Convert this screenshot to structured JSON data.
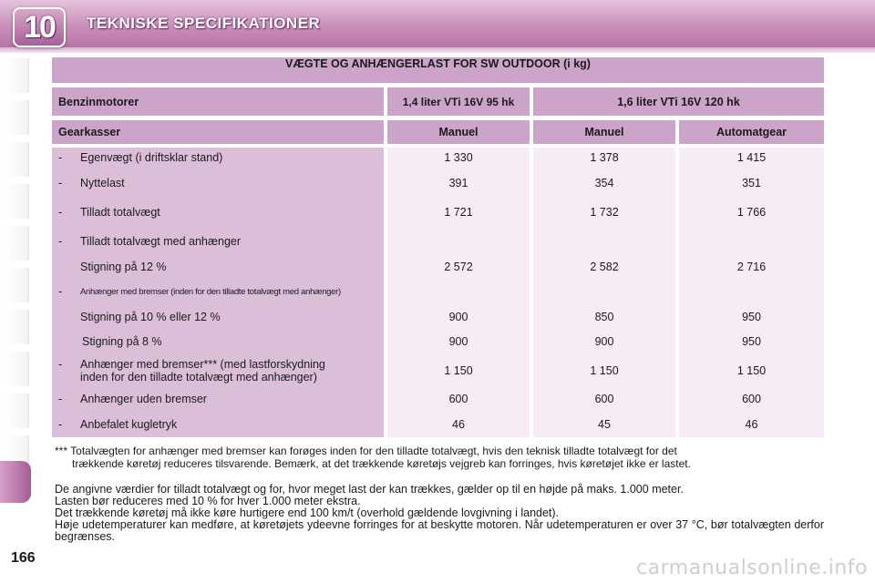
{
  "header": {
    "chapter_number": "10",
    "title": "TEKNISKE SPECIFIKATIONER"
  },
  "colors": {
    "accent": "#b674a6",
    "header_cell": "#cda4c9",
    "label_cell": "#dbbfd9",
    "value_cell": "#f7ecf5"
  },
  "table": {
    "title": "VÆGTE OG ANHÆNGERLAST FOR SW OUTDOOR (i kg)",
    "engine_row": {
      "label": "Benzinmotorer",
      "engine_1": "1,4 liter VTi 16V 95 hk",
      "engine_2": "1,6 liter VTi 16V 120 hk"
    },
    "gearbox_row": {
      "label": "Gearkasser",
      "g1": "Manuel",
      "g2": "Manuel",
      "g3": "Automatgear"
    },
    "rows": [
      {
        "label": "Egenvægt (i driftsklar stand)",
        "v1": "1 330",
        "v2": "1 378",
        "v3": "1 415"
      },
      {
        "label": "Nyttelast",
        "v1": "391",
        "v2": "354",
        "v3": "351"
      },
      {
        "label": "Tilladt totalvægt",
        "v1": "1 721",
        "v2": "1 732",
        "v3": "1 766"
      },
      {
        "label": "Tilladt totalvægt med anhænger"
      },
      {
        "label": "Stigning på 12 %",
        "v1": "2 572",
        "v2": "2 582",
        "v3": "2 716"
      },
      {
        "label": "Anhænger med bremser (inden for den tilladte totalvægt med anhænger)"
      },
      {
        "label": "Stigning på 10 % eller 12 %",
        "v1": "900",
        "v2": "850",
        "v3": "950"
      },
      {
        "label": "Stigning på 8 %",
        "v1": "900",
        "v2": "900",
        "v3": "950"
      },
      {
        "label_line1": "Anhænger med bremser*** (med lastforskydning",
        "label_line2": "inden for den tilladte totalvægt med anhænger)",
        "v1": "1 150",
        "v2": "1 150",
        "v3": "1 150"
      },
      {
        "label": "Anhænger uden bremser",
        "v1": "600",
        "v2": "600",
        "v3": "600"
      },
      {
        "label": "Anbefalet kugletryk",
        "v1": "46",
        "v2": "45",
        "v3": "46"
      }
    ],
    "dash": "-"
  },
  "footnote": {
    "marker": "***",
    "line1": "Totalvægten for anhænger med bremser kan forøges inden for den tilladte totalvægt, hvis den teknisk tilladte totalvægt for det",
    "line2": "trækkende køretøj reduceres tilsvarende. Bemærk, at det trækkende køretøjs vejgreb kan forringes, hvis køretøjet ikke er lastet."
  },
  "notes": [
    "De angivne værdier for tilladt totalvægt og for, hvor meget last der kan trækkes, gælder op til en højde på maks. 1.000 meter.",
    "Lasten bør reduceres med 10 % for hver 1.000 meter ekstra.",
    "Det trækkende køretøj må ikke køre hurtigere end 100 km/t (overhold gældende lovgivning i landet).",
    "Høje udetemperaturer kan medføre, at køretøjets ydeevne forringes for at beskytte motoren. Når udetemperaturen er over 37 °C, bør totalvægten derfor begrænses."
  ],
  "page_number": "166",
  "watermark": "carmanualsonline.info"
}
